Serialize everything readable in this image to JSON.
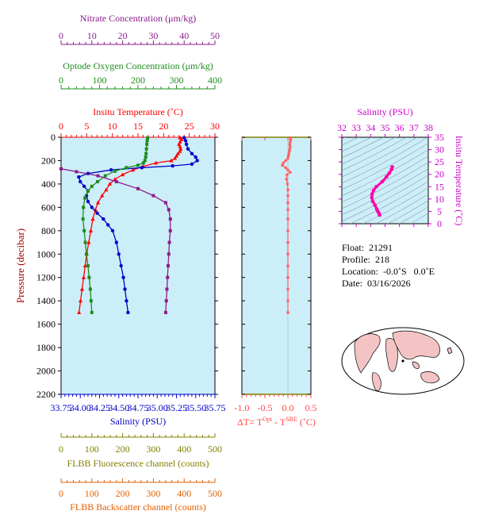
{
  "chart_data": {
    "type": "line",
    "main_profile": {
      "ylabel": "Pressure (decibar)",
      "ylim": [
        2200,
        0
      ],
      "yticks": [
        0,
        200,
        400,
        600,
        800,
        1000,
        1200,
        1400,
        1600,
        1800,
        2000,
        2200
      ],
      "axes": {
        "nitrate": {
          "label": "Nitrate Concentration (μm/kg)",
          "range": [
            0,
            50
          ],
          "ticks": [
            0,
            10,
            20,
            30,
            40,
            50
          ],
          "color": "#8b1c8b"
        },
        "oxygen": {
          "label": "Optode Oxygen Concentration (μm/kg)",
          "range": [
            0,
            400
          ],
          "ticks": [
            0,
            100,
            200,
            300,
            400
          ],
          "color": "#1e8c1e"
        },
        "temperature": {
          "label": "Insitu Temperature (˚C)",
          "range": [
            0,
            30
          ],
          "ticks": [
            0,
            5,
            10,
            15,
            20,
            25,
            30
          ],
          "color": "#ff0000"
        },
        "salinity": {
          "label": "Salinity (PSU)",
          "range": [
            33.75,
            35.75
          ],
          "ticks": [
            "33.75",
            "34.00",
            "34.25",
            "34.50",
            "34.75",
            "35.00",
            "35.25",
            "35.50",
            "35.75"
          ],
          "color": "#0000cc"
        },
        "fluorescence": {
          "label": "FLBB Fluorescence channel (counts)",
          "range": [
            0,
            500
          ],
          "ticks": [
            0,
            100,
            200,
            300,
            400,
            500
          ],
          "color": "#808000"
        },
        "backscatter": {
          "label": "FLBB Backscatter channel (counts)",
          "range": [
            0,
            500
          ],
          "ticks": [
            0,
            100,
            200,
            300,
            400,
            500
          ],
          "color": "#e06000"
        }
      },
      "series": [
        {
          "axis": "temperature",
          "color": "#ff0000",
          "marker": "triangle",
          "points": [
            [
              23.2,
              5
            ],
            [
              23.5,
              20
            ],
            [
              23.2,
              40
            ],
            [
              23,
              60
            ],
            [
              23.2,
              80
            ],
            [
              23.3,
              100
            ],
            [
              23.2,
              120
            ],
            [
              22.8,
              140
            ],
            [
              22.5,
              160
            ],
            [
              22.2,
              180
            ],
            [
              21.5,
              200
            ],
            [
              18.5,
              220
            ],
            [
              16,
              250
            ],
            [
              14,
              280
            ],
            [
              12,
              320
            ],
            [
              10.5,
              360
            ],
            [
              9.5,
              400
            ],
            [
              8.8,
              450
            ],
            [
              8,
              500
            ],
            [
              7.2,
              560
            ],
            [
              6.7,
              620
            ],
            [
              6.2,
              700
            ],
            [
              5.8,
              800
            ],
            [
              5.4,
              900
            ],
            [
              5,
              1000
            ],
            [
              4.7,
              1100
            ],
            [
              4.4,
              1200
            ],
            [
              4.1,
              1300
            ],
            [
              3.8,
              1400
            ],
            [
              3.5,
              1500
            ]
          ]
        },
        {
          "axis": "salinity",
          "color": "#0000cc",
          "marker": "circle",
          "points": [
            [
              35.35,
              5
            ],
            [
              35.37,
              30
            ],
            [
              35.38,
              60
            ],
            [
              35.4,
              100
            ],
            [
              35.45,
              140
            ],
            [
              35.5,
              170
            ],
            [
              35.52,
              200
            ],
            [
              35.45,
              230
            ],
            [
              35.2,
              245
            ],
            [
              34.8,
              260
            ],
            [
              34.4,
              280
            ],
            [
              34.1,
              310
            ],
            [
              33.98,
              340
            ],
            [
              34,
              380
            ],
            [
              34.05,
              420
            ],
            [
              34.1,
              460
            ],
            [
              34.08,
              500
            ],
            [
              34.1,
              550
            ],
            [
              34.15,
              600
            ],
            [
              34.22,
              650
            ],
            [
              34.3,
              700
            ],
            [
              34.36,
              750
            ],
            [
              34.42,
              800
            ],
            [
              34.47,
              900
            ],
            [
              34.5,
              1000
            ],
            [
              34.53,
              1100
            ],
            [
              34.56,
              1200
            ],
            [
              34.58,
              1300
            ],
            [
              34.6,
              1400
            ],
            [
              34.62,
              1500
            ]
          ]
        },
        {
          "axis": "oxygen",
          "color": "#1e8c1e",
          "marker": "square",
          "points": [
            [
              225,
              5
            ],
            [
              224,
              30
            ],
            [
              223,
              60
            ],
            [
              222,
              100
            ],
            [
              221,
              140
            ],
            [
              220,
              170
            ],
            [
              218,
              200
            ],
            [
              214,
              220
            ],
            [
              200,
              240
            ],
            [
              170,
              260
            ],
            [
              140,
              290
            ],
            [
              115,
              330
            ],
            [
              95,
              380
            ],
            [
              80,
              420
            ],
            [
              70,
              460
            ],
            [
              62,
              520
            ],
            [
              58,
              600
            ],
            [
              57,
              700
            ],
            [
              60,
              800
            ],
            [
              63,
              900
            ],
            [
              66,
              1000
            ],
            [
              70,
              1100
            ],
            [
              73,
              1200
            ],
            [
              76,
              1300
            ],
            [
              78,
              1400
            ],
            [
              80,
              1500
            ]
          ]
        },
        {
          "axis": "nitrate",
          "color": "#8b1c8b",
          "marker": "square",
          "points": [
            [
              0,
              270
            ],
            [
              5,
              295
            ],
            [
              12,
              330
            ],
            [
              18,
              380
            ],
            [
              25,
              440
            ],
            [
              30,
              500
            ],
            [
              34,
              560
            ],
            [
              35,
              620
            ],
            [
              35.5,
              700
            ],
            [
              35.5,
              800
            ],
            [
              35.2,
              900
            ],
            [
              35,
              1000
            ],
            [
              34.8,
              1100
            ],
            [
              34.6,
              1200
            ],
            [
              34.4,
              1300
            ],
            [
              34.2,
              1400
            ],
            [
              34,
              1500
            ]
          ]
        }
      ]
    },
    "delta_panel": {
      "xlabel": "ΔT= T",
      "xlabel_sup1": "Opt",
      "xlabel_mid": " - T",
      "xlabel_sup2": "SBE",
      "xlabel_end": " (˚C)",
      "xlim": [
        -1.0,
        0.5
      ],
      "xticks": [
        "-1.0",
        "-0.5",
        "0.0",
        "0.5"
      ],
      "ylim": [
        2200,
        0
      ],
      "color": "#ff6060",
      "points": [
        [
          0.05,
          5
        ],
        [
          0.06,
          20
        ],
        [
          0.05,
          40
        ],
        [
          0.04,
          60
        ],
        [
          0.05,
          80
        ],
        [
          0.04,
          100
        ],
        [
          0.03,
          120
        ],
        [
          0.02,
          140
        ],
        [
          0.01,
          160
        ],
        [
          0,
          180
        ],
        [
          -0.05,
          200
        ],
        [
          -0.1,
          220
        ],
        [
          -0.12,
          240
        ],
        [
          -0.05,
          260
        ],
        [
          0,
          280
        ],
        [
          0.05,
          300
        ],
        [
          -0.02,
          320
        ],
        [
          -0.03,
          360
        ],
        [
          -0.01,
          400
        ],
        [
          0,
          450
        ],
        [
          0,
          500
        ],
        [
          0,
          560
        ],
        [
          0,
          620
        ],
        [
          0,
          700
        ],
        [
          0,
          800
        ],
        [
          0,
          900
        ],
        [
          0,
          1000
        ],
        [
          0,
          1100
        ],
        [
          0,
          1200
        ],
        [
          0,
          1300
        ],
        [
          0,
          1400
        ],
        [
          0,
          1500
        ]
      ]
    },
    "ts_diagram": {
      "xlabel": "Salinity (PSU)",
      "ylabel": "Insitu Temperature (˚C)",
      "xlim": [
        32,
        38
      ],
      "xticks": [
        32,
        33,
        34,
        35,
        36,
        37,
        38
      ],
      "ylim": [
        0,
        35
      ],
      "yticks": [
        0,
        5,
        10,
        15,
        20,
        25,
        30,
        35
      ],
      "color": "#ff00aa",
      "points": [
        [
          34.62,
          3.5
        ],
        [
          34.58,
          4.2
        ],
        [
          34.5,
          5
        ],
        [
          34.42,
          6
        ],
        [
          34.3,
          7.5
        ],
        [
          34.15,
          9
        ],
        [
          34.08,
          10.5
        ],
        [
          34.1,
          12
        ],
        [
          34.2,
          13.5
        ],
        [
          34.4,
          15
        ],
        [
          34.8,
          17
        ],
        [
          35.1,
          19
        ],
        [
          35.3,
          20.5
        ],
        [
          35.45,
          22
        ],
        [
          35.5,
          23
        ]
      ]
    },
    "metadata": [
      {
        "label": "Float:",
        "value": "21291"
      },
      {
        "label": "Profile:",
        "value": "218"
      },
      {
        "label": "Location:",
        "value": "-0.0˚S   0.0˚E"
      },
      {
        "label": "Date:",
        "value": "03/16/2026"
      }
    ]
  }
}
